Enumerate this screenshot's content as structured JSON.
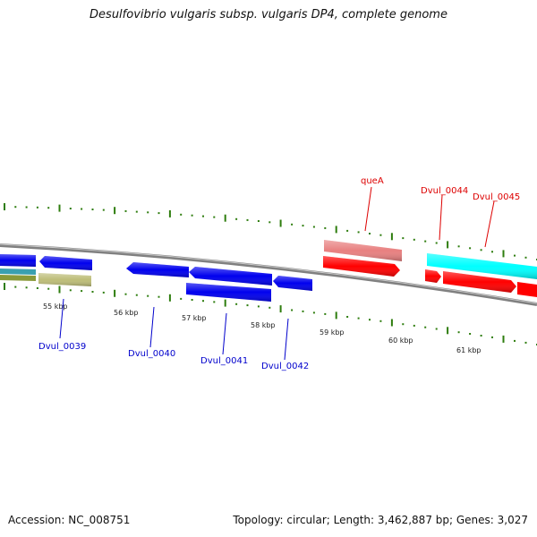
{
  "title": "Desulfovibrio vulgaris subsp. vulgaris DP4, complete genome",
  "footer": {
    "accession": "Accession: NC_008751",
    "summary": "Topology: circular; Length: 3,462,887 bp; Genes: 3,027"
  },
  "colors": {
    "backbone": "#808080",
    "tick": "#2e7d0e",
    "plus_strand_gene": "#ff0000",
    "plus_strand_gene_faded": "#e88080",
    "minus_strand_gene": "#0000ee",
    "cds_cyan": "#00ffff",
    "olive_feature": "#bdbd78",
    "teal_feature": "#3aa0b0",
    "label_red": "#dd0000",
    "label_blue": "#0000cc"
  },
  "ruler": {
    "unit": "kbp",
    "labels": [
      "55 kbp",
      "56 kbp",
      "57 kbp",
      "58 kbp",
      "59 kbp",
      "60 kbp",
      "61 kbp"
    ]
  },
  "gene_labels": {
    "top": [
      "queA",
      "Dvul_0044",
      "Dvul_0045"
    ],
    "bottom": [
      "Dvul_0039",
      "Dvul_0040",
      "Dvul_0041",
      "Dvul_0042"
    ]
  }
}
